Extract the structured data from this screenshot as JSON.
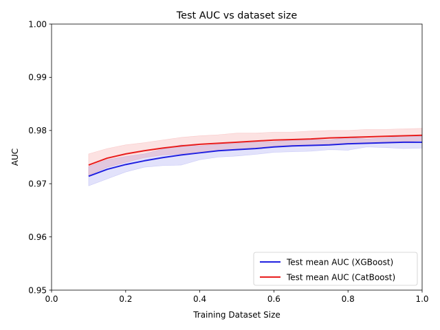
{
  "chart_data": {
    "type": "line",
    "title": "Test AUC vs dataset size",
    "xlabel": "Training Dataset Size",
    "ylabel": "AUC",
    "xlim": [
      0.0,
      1.0
    ],
    "ylim": [
      0.95,
      1.0
    ],
    "xticks": [
      "0.0",
      "0.2",
      "0.4",
      "0.6",
      "0.8",
      "1.0"
    ],
    "yticks": [
      "0.95",
      "0.96",
      "0.97",
      "0.98",
      "0.99",
      "1.00"
    ],
    "grid": false,
    "legend_position": "lower-right",
    "x": [
      0.1,
      0.15,
      0.2,
      0.25,
      0.3,
      0.35,
      0.4,
      0.45,
      0.5,
      0.55,
      0.6,
      0.65,
      0.7,
      0.75,
      0.8,
      0.85,
      0.9,
      0.95,
      1.0
    ],
    "series": [
      {
        "name": "Test mean AUC (XGBoost)",
        "color": "#1f1fe0",
        "values": [
          0.9714,
          0.9727,
          0.9736,
          0.9743,
          0.9749,
          0.9754,
          0.9758,
          0.9762,
          0.9764,
          0.9766,
          0.9769,
          0.9771,
          0.9772,
          0.9773,
          0.9775,
          0.9776,
          0.9777,
          0.9778,
          0.9778
        ],
        "lower": [
          0.9696,
          0.9709,
          0.9722,
          0.9731,
          0.9734,
          0.9735,
          0.9745,
          0.975,
          0.9752,
          0.9755,
          0.9759,
          0.976,
          0.9761,
          0.9764,
          0.9763,
          0.9769,
          0.9768,
          0.9766,
          0.9767
        ],
        "upper": [
          0.9732,
          0.9745,
          0.9751,
          0.9756,
          0.9765,
          0.9773,
          0.9771,
          0.9774,
          0.9776,
          0.9778,
          0.9779,
          0.9782,
          0.9783,
          0.9782,
          0.9787,
          0.9784,
          0.9786,
          0.979,
          0.9789
        ]
      },
      {
        "name": "Test mean AUC (CatBoost)",
        "color": "#e81c1c",
        "values": [
          0.9735,
          0.9748,
          0.9756,
          0.9762,
          0.9767,
          0.9771,
          0.9774,
          0.9776,
          0.9778,
          0.978,
          0.9782,
          0.9783,
          0.9784,
          0.9786,
          0.9787,
          0.9788,
          0.9789,
          0.979,
          0.9791
        ],
        "lower": [
          0.9716,
          0.9731,
          0.974,
          0.9749,
          0.9754,
          0.9756,
          0.976,
          0.9762,
          0.9764,
          0.9766,
          0.977,
          0.9772,
          0.9771,
          0.9774,
          0.9776,
          0.9776,
          0.9778,
          0.9779,
          0.9781
        ],
        "upper": [
          0.9756,
          0.9766,
          0.9773,
          0.9777,
          0.9782,
          0.9787,
          0.979,
          0.9792,
          0.9795,
          0.9795,
          0.9797,
          0.9797,
          0.9799,
          0.98,
          0.98,
          0.9802,
          0.9802,
          0.9803,
          0.9804
        ]
      }
    ]
  }
}
